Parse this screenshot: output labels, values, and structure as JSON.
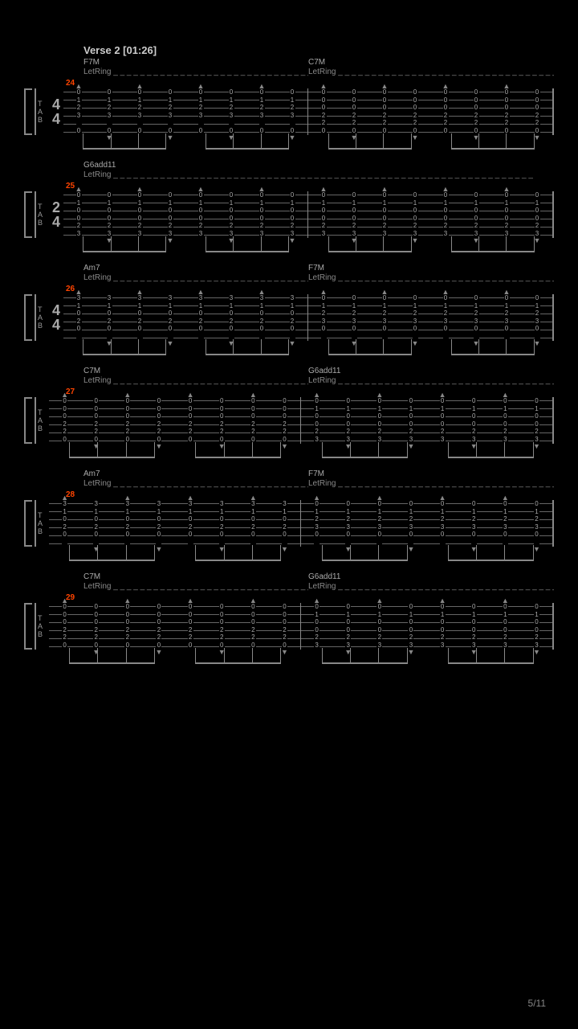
{
  "section_title": "Verse 2 [01:26]",
  "page_number": "5/11",
  "letring_text": "LetRing",
  "dashes": "_ _ _ _ _ _ _ _ _ _ _ _ _ _ _ _ _ _ _ _ _ _ _ _ _ _ _ _ _ _ _ _ _ _ _ _ _ _ _",
  "dashes_long": "_ _ _ _ _ _ _ _ _ _ _ _ _ _ _ _ _ _ _ _ _ _ _ _ _ _ _ _ _ _ _ _ _ _ _ _ _ _ _ _ _ _ _ _ _ _ _ _ _ _ _ _ _ _ _ _ _ _ _ _ _ _ _ _ _ _ _ _",
  "tab_letters": [
    "T",
    "A",
    "B"
  ],
  "systems": [
    {
      "measure_num": "24",
      "timesig": [
        "4",
        "4"
      ],
      "chord_left": "F7M",
      "chord_right": "C7M",
      "two_chords": true,
      "frets_a": [
        "0",
        "1",
        "2",
        "3",
        "",
        "0"
      ],
      "frets_b": [
        "0",
        "0",
        "0",
        "2",
        "2",
        "0"
      ]
    },
    {
      "measure_num": "25",
      "timesig": [
        "2",
        "4"
      ],
      "chord_single": "G6add11",
      "two_chords": false,
      "frets_a": [
        "0",
        "1",
        "0",
        "0",
        "2",
        "3"
      ],
      "frets_b": [
        "0",
        "1",
        "0",
        "0",
        "2",
        "3"
      ]
    },
    {
      "measure_num": "26",
      "timesig": [
        "4",
        "4"
      ],
      "chord_left": "Am7",
      "chord_right": "F7M",
      "two_chords": true,
      "frets_a": [
        "3",
        "1",
        "0",
        "2",
        "0",
        ""
      ],
      "frets_b": [
        "0",
        "1",
        "2",
        "3",
        "0",
        ""
      ]
    },
    {
      "measure_num": "27",
      "timesig": null,
      "chord_left": "C7M",
      "chord_right": "G6add11",
      "two_chords": true,
      "frets_a": [
        "0",
        "0",
        "0",
        "2",
        "2",
        "0"
      ],
      "frets_b": [
        "0",
        "1",
        "0",
        "0",
        "2",
        "3"
      ]
    },
    {
      "measure_num": "28",
      "timesig": null,
      "chord_left": "Am7",
      "chord_right": "F7M",
      "two_chords": true,
      "frets_a": [
        "3",
        "1",
        "0",
        "2",
        "0",
        ""
      ],
      "frets_b": [
        "0",
        "1",
        "2",
        "3",
        "0",
        ""
      ]
    },
    {
      "measure_num": "29",
      "timesig": null,
      "chord_left": "C7M",
      "chord_right": "G6add11",
      "two_chords": true,
      "frets_a": [
        "0",
        "0",
        "0",
        "2",
        "2",
        "0"
      ],
      "frets_b": [
        "0",
        "1",
        "0",
        "0",
        "2",
        "3"
      ]
    }
  ],
  "colors": {
    "bg": "#000000",
    "text": "#aaaaaa",
    "measure": "#ff4400",
    "lines": "#666666"
  }
}
